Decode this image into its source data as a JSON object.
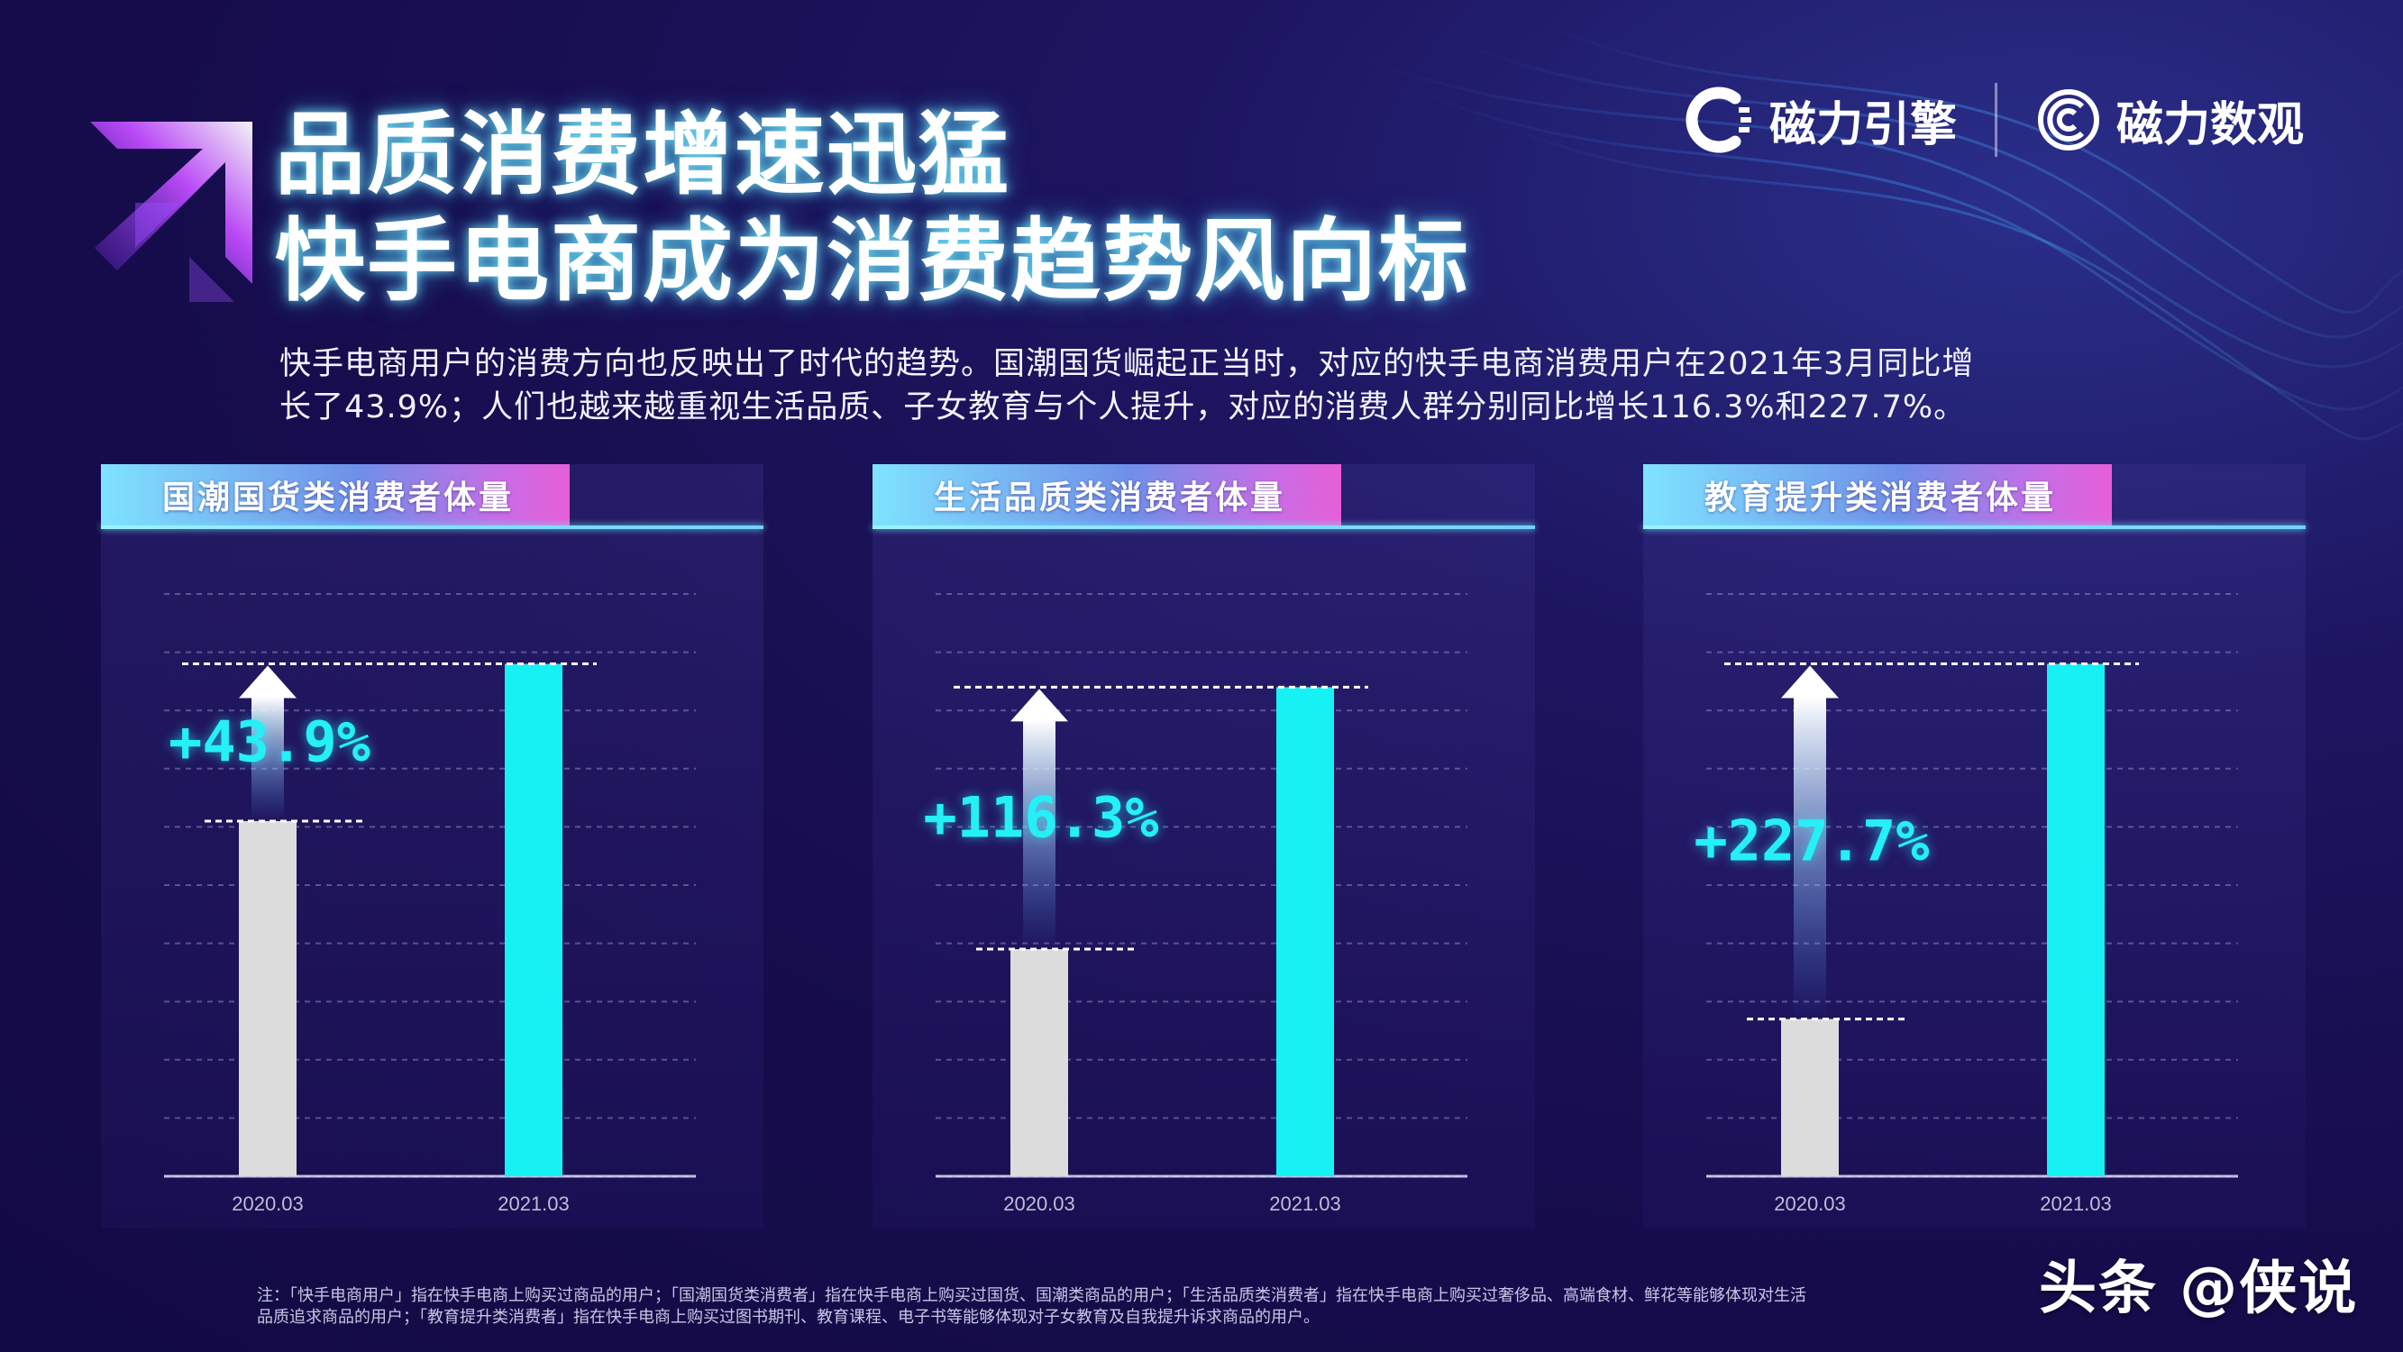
{
  "header": {
    "title_line1": "品质消费增速迅猛",
    "title_line2": "快手电商成为消费趋势风向标"
  },
  "brands": [
    {
      "name": "磁力引擎",
      "icon": "cili-engine-logo-icon"
    },
    {
      "name": "磁力数观",
      "icon": "cili-shuguan-logo-icon"
    }
  ],
  "intro": {
    "line1": "快手电商用户的消费方向也反映出了时代的趋势。国潮国货崛起正当时，对应的快手电商消费用户在2021年3月同比增",
    "line2": "长了43.9%；人们也越来越重视生活品质、子女教育与个人提升，对应的消费人群分别同比增长116.3%和227.7%。"
  },
  "chart_data": [
    {
      "type": "bar",
      "title": "国潮国货类消费者体量",
      "categories": [
        "2020.03",
        "2021.03"
      ],
      "values": [
        0.61,
        0.88
      ],
      "growth_label": "+43.9%",
      "colors": [
        "#dcdcdc",
        "#16f1f3"
      ]
    },
    {
      "type": "bar",
      "title": "生活品质类消费者体量",
      "categories": [
        "2020.03",
        "2021.03"
      ],
      "values": [
        0.39,
        0.84
      ],
      "growth_label": "+116.3%",
      "colors": [
        "#dcdcdc",
        "#16f1f3"
      ]
    },
    {
      "type": "bar",
      "title": "教育提升类消费者体量",
      "categories": [
        "2020.03",
        "2021.03"
      ],
      "values": [
        0.27,
        0.88
      ],
      "growth_label": "+227.7%",
      "colors": [
        "#dcdcdc",
        "#16f1f3"
      ]
    }
  ],
  "footnote": {
    "line1": "注：「快手电商用户」指在快手电商上购买过商品的用户；「国潮国货类消费者」指在快手电商上购买过国货、国潮类商品的用户；「生活品质类消费者」指在快手电商上购买过奢侈品、高端食材、鲜花等能够体现对生活",
    "line2": "品质追求商品的用户；「教育提升类消费者」指在快手电商上购买过图书期刊、教育课程、电子书等能够体现对子女教育及自我提升诉求商品的用户。"
  },
  "watermark": "头条 @侠说"
}
